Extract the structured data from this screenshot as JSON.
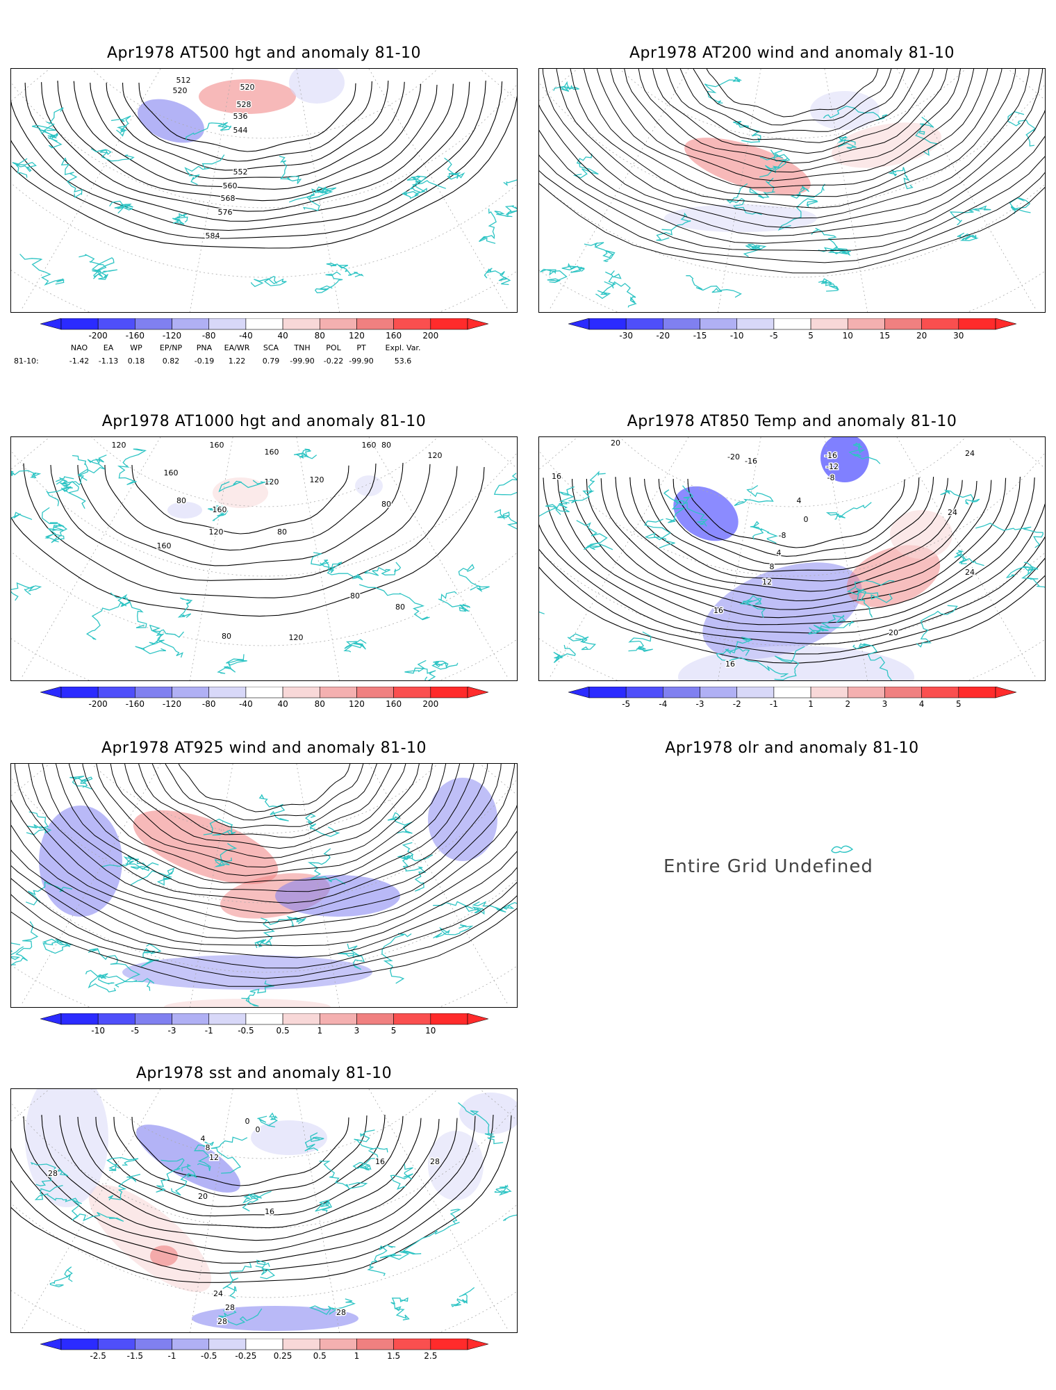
{
  "panels": [
    {
      "id": "p1",
      "title": "Apr1978 AT500 hgt and anomaly 81-10",
      "contours": [
        "512",
        "520",
        "520",
        "528",
        "536",
        "544",
        "552",
        "560",
        "568",
        "576",
        "584"
      ],
      "colorbar": [
        "-200",
        "-160",
        "-120",
        "-80",
        "-40",
        "40",
        "80",
        "120",
        "160",
        "200"
      ]
    },
    {
      "id": "p2",
      "title": "Apr1978 AT200 wind and anomaly 81-10",
      "contours": [],
      "colorbar": [
        "-30",
        "-20",
        "-15",
        "-10",
        "-5",
        "5",
        "10",
        "15",
        "20",
        "30"
      ]
    },
    {
      "id": "p3",
      "title": "Apr1978 AT1000 hgt and anomaly 81-10",
      "contours": [
        "120",
        "160",
        "160",
        "80",
        "160",
        "120",
        "120",
        "160",
        "80",
        "120",
        "80",
        "160",
        "160",
        "120",
        "80",
        "80",
        "80",
        "120",
        "80"
      ],
      "colorbar": [
        "-200",
        "-160",
        "-120",
        "-80",
        "-40",
        "40",
        "80",
        "120",
        "160",
        "200"
      ]
    },
    {
      "id": "p4",
      "title": "Apr1978 AT850 Temp and anomaly 81-10",
      "contours": [
        "20",
        "16",
        "-20",
        "-16",
        "-16",
        "-12",
        "-8",
        "4",
        "0",
        "-8",
        "4",
        "8",
        "12",
        "16",
        "20",
        "24",
        "24",
        "24",
        "16"
      ],
      "colorbar": [
        "-5",
        "-4",
        "-3",
        "-2",
        "-1",
        "1",
        "2",
        "3",
        "4",
        "5"
      ]
    },
    {
      "id": "p5",
      "title": "Apr1978 AT925 wind and anomaly 81-10",
      "contours": [],
      "colorbar": [
        "-10",
        "-5",
        "-3",
        "-1",
        "-0.5",
        "0.5",
        "1",
        "3",
        "5",
        "10"
      ]
    },
    {
      "id": "p6",
      "title": "Apr1978 olr and anomaly 81-10",
      "message": "Entire Grid Undefined"
    },
    {
      "id": "p7",
      "title": "Apr1978 sst and anomaly 81-10",
      "contours": [
        "28",
        "0",
        "0",
        "4",
        "8",
        "12",
        "16",
        "20",
        "24",
        "28",
        "28",
        "28",
        "16",
        "28"
      ],
      "colorbar": [
        "-2.5",
        "-1.5",
        "-1",
        "-0.5",
        "-0.25",
        "0.25",
        "0.5",
        "1",
        "1.5",
        "2.5"
      ]
    }
  ],
  "indices": {
    "headers": [
      "NAO",
      "EA",
      "WP",
      "EP/NP",
      "PNA",
      "EA/WR",
      "SCA",
      "TNH",
      "POL",
      "PT",
      "Expl. Var."
    ],
    "row_label": "81-10:",
    "values": [
      "-1.42",
      "-1.13",
      "0.18",
      "0.82",
      "-0.19",
      "1.22",
      "0.79",
      "-99.90",
      "-0.22",
      "-99.90",
      "53.6"
    ]
  },
  "colors": {
    "coast": "#2ec4c4",
    "neg_strong": "#2b2bff",
    "neg_mid": "#8080f0",
    "neg_light": "#d8d8f8",
    "pos_light": "#f8d8d8",
    "pos_mid": "#f08080",
    "pos_strong": "#ff2b2b"
  }
}
